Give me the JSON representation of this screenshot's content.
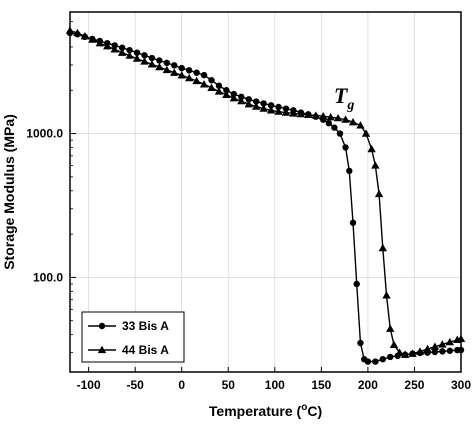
{
  "chart_data": {
    "type": "line",
    "title": "",
    "xlabel": {
      "main": "Temperature (",
      "sup": "o",
      "unit": "C)"
    },
    "ylabel": "Storage Modulus (MPa)",
    "xlim": [
      -120,
      300
    ],
    "ylim": [
      22,
      7000
    ],
    "yscale": "log",
    "grid": true,
    "x_ticks": [
      -100,
      -50,
      0,
      50,
      100,
      150,
      200,
      250,
      300
    ],
    "x_tick_labels": [
      "-100",
      "-50",
      "0",
      "50",
      "100",
      "150",
      "200",
      "250",
      "300"
    ],
    "y_ticks": [
      100,
      1000
    ],
    "y_tick_labels": [
      "100.0",
      "1000.0"
    ],
    "legend_position": "bottom-left",
    "annotation": {
      "text": "T",
      "sub": "g",
      "x": 200,
      "y": 1850
    },
    "series": [
      {
        "name": "33 Bis A",
        "marker": "circle",
        "color": "#000000",
        "points": [
          [
            -120,
            5000
          ],
          [
            -112,
            4900
          ],
          [
            -104,
            4700
          ],
          [
            -96,
            4550
          ],
          [
            -88,
            4400
          ],
          [
            -80,
            4250
          ],
          [
            -72,
            4100
          ],
          [
            -64,
            3950
          ],
          [
            -56,
            3800
          ],
          [
            -48,
            3650
          ],
          [
            -40,
            3500
          ],
          [
            -32,
            3350
          ],
          [
            -24,
            3220
          ],
          [
            -16,
            3100
          ],
          [
            -8,
            2980
          ],
          [
            0,
            2850
          ],
          [
            8,
            2750
          ],
          [
            16,
            2650
          ],
          [
            24,
            2550
          ],
          [
            32,
            2350
          ],
          [
            40,
            2150
          ],
          [
            48,
            2000
          ],
          [
            56,
            1880
          ],
          [
            64,
            1800
          ],
          [
            72,
            1730
          ],
          [
            80,
            1670
          ],
          [
            88,
            1620
          ],
          [
            96,
            1570
          ],
          [
            104,
            1530
          ],
          [
            112,
            1490
          ],
          [
            120,
            1450
          ],
          [
            128,
            1400
          ],
          [
            136,
            1360
          ],
          [
            144,
            1310
          ],
          [
            152,
            1250
          ],
          [
            158,
            1180
          ],
          [
            164,
            1100
          ],
          [
            170,
            1000
          ],
          [
            176,
            800
          ],
          [
            180,
            550
          ],
          [
            184,
            240
          ],
          [
            188,
            90
          ],
          [
            192,
            35
          ],
          [
            196,
            27
          ],
          [
            200,
            26
          ],
          [
            208,
            26
          ],
          [
            216,
            27
          ],
          [
            224,
            28
          ],
          [
            232,
            28.5
          ],
          [
            240,
            29
          ],
          [
            248,
            29.5
          ],
          [
            256,
            29.8
          ],
          [
            264,
            30
          ],
          [
            272,
            30.3
          ],
          [
            280,
            30.6
          ],
          [
            288,
            30.9
          ],
          [
            296,
            31.2
          ],
          [
            300,
            31.3
          ]
        ]
      },
      {
        "name": "44 Bis A",
        "marker": "triangle",
        "color": "#000000",
        "points": [
          [
            -120,
            5200
          ],
          [
            -112,
            5000
          ],
          [
            -104,
            4750
          ],
          [
            -96,
            4500
          ],
          [
            -88,
            4250
          ],
          [
            -80,
            4050
          ],
          [
            -72,
            3850
          ],
          [
            -64,
            3650
          ],
          [
            -56,
            3480
          ],
          [
            -48,
            3320
          ],
          [
            -40,
            3170
          ],
          [
            -32,
            3030
          ],
          [
            -24,
            2900
          ],
          [
            -16,
            2770
          ],
          [
            -8,
            2650
          ],
          [
            0,
            2540
          ],
          [
            8,
            2430
          ],
          [
            16,
            2320
          ],
          [
            24,
            2200
          ],
          [
            32,
            2080
          ],
          [
            40,
            1960
          ],
          [
            48,
            1860
          ],
          [
            56,
            1760
          ],
          [
            64,
            1680
          ],
          [
            72,
            1600
          ],
          [
            80,
            1540
          ],
          [
            88,
            1490
          ],
          [
            96,
            1450
          ],
          [
            104,
            1420
          ],
          [
            112,
            1400
          ],
          [
            120,
            1380
          ],
          [
            128,
            1365
          ],
          [
            136,
            1350
          ],
          [
            144,
            1335
          ],
          [
            152,
            1320
          ],
          [
            160,
            1300
          ],
          [
            168,
            1280
          ],
          [
            176,
            1250
          ],
          [
            184,
            1200
          ],
          [
            192,
            1140
          ],
          [
            198,
            1000
          ],
          [
            204,
            780
          ],
          [
            208,
            600
          ],
          [
            212,
            380
          ],
          [
            216,
            160
          ],
          [
            220,
            75
          ],
          [
            224,
            44
          ],
          [
            228,
            34
          ],
          [
            234,
            30
          ],
          [
            240,
            29
          ],
          [
            248,
            29.5
          ],
          [
            256,
            30.5
          ],
          [
            264,
            31.8
          ],
          [
            272,
            33
          ],
          [
            280,
            34.2
          ],
          [
            288,
            35.5
          ],
          [
            296,
            36.8
          ],
          [
            300,
            37.4
          ]
        ]
      }
    ]
  }
}
